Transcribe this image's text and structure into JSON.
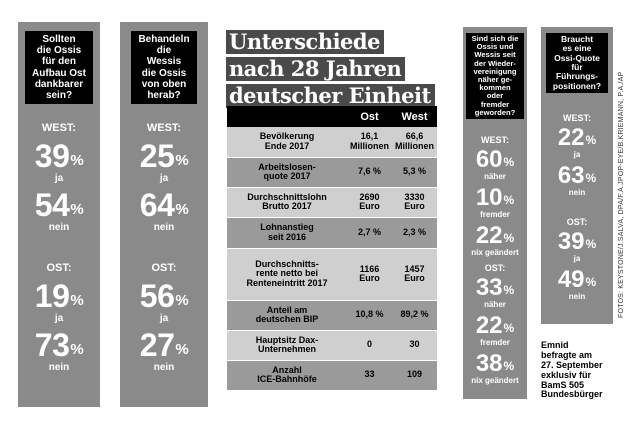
{
  "panel1": {
    "question": "Sollten\ndie Ossis\nfür den\nAufbau Ost\ndankbarer\nsein?",
    "west_label": "WEST:",
    "west": [
      {
        "value": "39",
        "unit": "%",
        "label": "ja"
      },
      {
        "value": "54",
        "unit": "%",
        "label": "nein"
      }
    ],
    "ost_label": "OST:",
    "ost": [
      {
        "value": "19",
        "unit": "%",
        "label": "ja"
      },
      {
        "value": "73",
        "unit": "%",
        "label": "nein"
      }
    ]
  },
  "panel2": {
    "question": "Behandeln\ndie\nWessis\ndie Ossis\nvon oben\nherab?",
    "west_label": "WEST:",
    "west": [
      {
        "value": "25",
        "unit": "%",
        "label": "ja"
      },
      {
        "value": "64",
        "unit": "%",
        "label": "nein"
      }
    ],
    "ost_label": "OST:",
    "ost": [
      {
        "value": "56",
        "unit": "%",
        "label": "ja"
      },
      {
        "value": "27",
        "unit": "%",
        "label": "nein"
      }
    ]
  },
  "title": [
    "Unterschiede",
    "nach 28 Jahren",
    "deutscher Einheit"
  ],
  "table": {
    "headers": [
      "",
      "Ost",
      "West"
    ],
    "rows": [
      {
        "label": "Bevölkerung\nEnde 2017",
        "ost": "16,1\nMillionen",
        "west": "66,6\nMillionen"
      },
      {
        "label": "Arbeitslosen-\nquote 2017",
        "ost": "7,6 %",
        "west": "5,3 %"
      },
      {
        "label": "Durchschnittslohn\nBrutto 2017",
        "ost": "2690\nEuro",
        "west": "3330\nEuro"
      },
      {
        "label": "Lohnanstieg\nseit 2016",
        "ost": "2,7 %",
        "west": "2,3 %"
      },
      {
        "label": "Durchschnitts-\nrente netto bei\nRenteneintritt 2017",
        "ost": "1166\nEuro",
        "west": "1457\nEuro"
      },
      {
        "label": "Anteil am\ndeutschen BIP",
        "ost": "10,8 %",
        "west": "89,2 %"
      },
      {
        "label": "Hauptsitz Dax-\nUnternehmen",
        "ost": "0",
        "west": "30"
      },
      {
        "label": "Anzahl\nICE-Bahnhöfe",
        "ost": "33",
        "west": "109"
      }
    ]
  },
  "panel3": {
    "question": "Sind sich die\nOssis und\nWessis seit\nder Wieder-\nvereinigung\nnäher ge-\nkommen\noder\nfremder\ngeworden?",
    "west_label": "WEST:",
    "west": [
      {
        "value": "60",
        "unit": "%",
        "label": "näher"
      },
      {
        "value": "10",
        "unit": "%",
        "label": "fremder"
      },
      {
        "value": "22",
        "unit": "%",
        "label": "nix geändert"
      }
    ],
    "ost_label": "OST:",
    "ost": [
      {
        "value": "33",
        "unit": "%",
        "label": "näher"
      },
      {
        "value": "22",
        "unit": "%",
        "label": "fremder"
      },
      {
        "value": "38",
        "unit": "%",
        "label": "nix geändert"
      }
    ]
  },
  "panel4": {
    "question": "Braucht\nes eine\nOssi-Quote\nfür\nFührungs-\npositionen?",
    "west_label": "WEST:",
    "west": [
      {
        "value": "22",
        "unit": "%",
        "label": "ja"
      },
      {
        "value": "63",
        "unit": "%",
        "label": "nein"
      }
    ],
    "ost_label": "OST:",
    "ost": [
      {
        "value": "39",
        "unit": "%",
        "label": "ja"
      },
      {
        "value": "49",
        "unit": "%",
        "label": "nein"
      }
    ]
  },
  "note": "Emnid\nbefragte am\n27. September\nexklusiv für\nBamS 505\nBundesbürger",
  "credit": "FOTOS: KEYSTONE/J.SALVA, DPA/F.A.JPOP-EYE/B.KRIEMANN, P.A./AP"
}
